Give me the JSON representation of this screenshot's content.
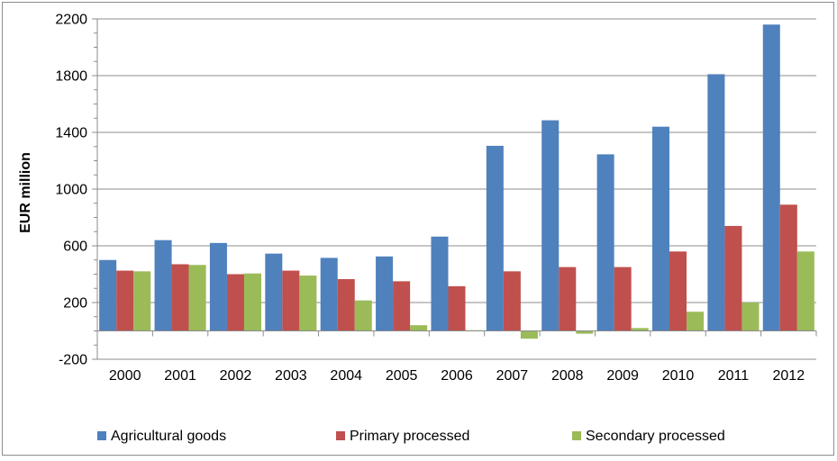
{
  "chart_data": {
    "type": "bar",
    "title": "",
    "xlabel": "",
    "ylabel": "EUR million",
    "ylim": [
      -200,
      2200
    ],
    "yticks": [
      -200,
      200,
      600,
      1000,
      1400,
      1800,
      2200
    ],
    "grid": true,
    "legend_position": "bottom",
    "categories": [
      "2000",
      "2001",
      "2002",
      "2003",
      "2004",
      "2005",
      "2006",
      "2007",
      "2008",
      "2009",
      "2010",
      "2011",
      "2012"
    ],
    "series": [
      {
        "name": "Agricultural goods",
        "color": "#4f81bd",
        "values": [
          500,
          640,
          620,
          545,
          515,
          525,
          665,
          1305,
          1485,
          1245,
          1440,
          1810,
          2160
        ]
      },
      {
        "name": "Primary processed",
        "color": "#c0504d",
        "values": [
          425,
          470,
          400,
          425,
          365,
          350,
          315,
          420,
          450,
          450,
          560,
          740,
          890
        ]
      },
      {
        "name": "Secondary processed",
        "color": "#9bbb59",
        "values": [
          420,
          465,
          405,
          390,
          215,
          40,
          5,
          -55,
          -20,
          20,
          135,
          200,
          560
        ]
      }
    ]
  }
}
